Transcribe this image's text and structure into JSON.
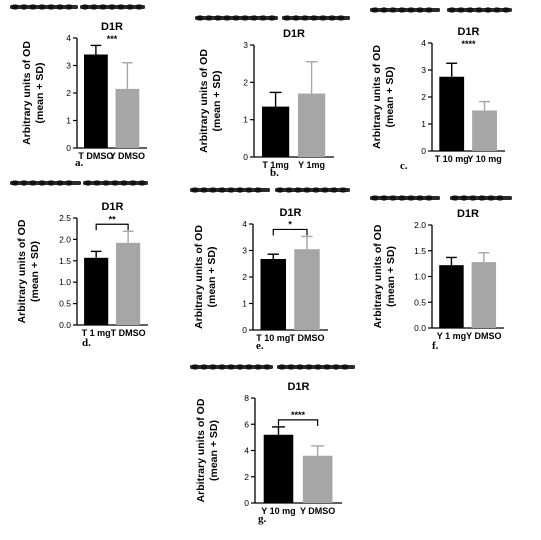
{
  "chart_data": [
    {
      "panel": "a.",
      "type": "bar",
      "title": "D1R",
      "ylabel": "Arbitrary units of OD\n(mean + SD)",
      "categories": [
        "T DMSO",
        "Y DMSO"
      ],
      "values": [
        3.4,
        2.15
      ],
      "errors": [
        0.33,
        0.95
      ],
      "colors": [
        "#000000",
        "#a6a6a6"
      ],
      "ylim": [
        0,
        4
      ],
      "yticks": [
        "0",
        "1",
        "2",
        "3",
        "4"
      ],
      "significance": "***",
      "bracket": false
    },
    {
      "panel": "b.",
      "type": "bar",
      "title": "D1R",
      "ylabel": "Arbitrary units of OD\n(mean + SD)",
      "categories": [
        "T 1mg",
        "Y 1mg"
      ],
      "values": [
        1.35,
        1.7
      ],
      "errors": [
        0.38,
        0.85
      ],
      "colors": [
        "#000000",
        "#a6a6a6"
      ],
      "ylim": [
        0,
        3
      ],
      "yticks": [
        "0",
        "1",
        "2",
        "3"
      ],
      "significance": "",
      "bracket": false
    },
    {
      "panel": "c.",
      "type": "bar",
      "title": "D1R",
      "ylabel": "Arbitrary units of OD\n(mean + SD)",
      "categories": [
        "T 10 mg",
        "Y 10 mg"
      ],
      "values": [
        2.75,
        1.5
      ],
      "errors": [
        0.5,
        0.33
      ],
      "colors": [
        "#000000",
        "#a6a6a6"
      ],
      "ylim": [
        0,
        4
      ],
      "yticks": [
        "0",
        "1",
        "2",
        "3",
        "4"
      ],
      "significance": "****",
      "bracket": false
    },
    {
      "panel": "d.",
      "type": "bar",
      "title": "D1R",
      "ylabel": "Arbitrary units of OD\n(mean + SD)",
      "categories": [
        "T 1 mg",
        "T DMSO"
      ],
      "values": [
        1.57,
        1.92
      ],
      "errors": [
        0.15,
        0.27
      ],
      "colors": [
        "#000000",
        "#a6a6a6"
      ],
      "ylim": [
        0,
        2.5
      ],
      "yticks": [
        "0.0",
        "0.5",
        "1.0",
        "1.5",
        "2.0",
        "2.5"
      ],
      "significance": "**",
      "bracket": true
    },
    {
      "panel": "e.",
      "type": "bar",
      "title": "D1R",
      "ylabel": "Arbitrary units of OD\n(mean + SD)",
      "categories": [
        "T 10 mg",
        "T DMSO"
      ],
      "values": [
        2.68,
        3.05
      ],
      "errors": [
        0.18,
        0.48
      ],
      "colors": [
        "#000000",
        "#a6a6a6"
      ],
      "ylim": [
        0,
        4
      ],
      "yticks": [
        "0",
        "1",
        "2",
        "3",
        "4"
      ],
      "significance": "*",
      "bracket": true
    },
    {
      "panel": "f.",
      "type": "bar",
      "title": "D1R",
      "ylabel": "Arbitrary units of OD\n(mean + SD)",
      "categories": [
        "Y 1 mg",
        "Y DMSO"
      ],
      "values": [
        1.22,
        1.28
      ],
      "errors": [
        0.15,
        0.18
      ],
      "colors": [
        "#000000",
        "#a6a6a6"
      ],
      "ylim": [
        0,
        2
      ],
      "yticks": [
        "0.0",
        "0.5",
        "1.0",
        "1.5",
        "2.0"
      ],
      "significance": "",
      "bracket": false
    },
    {
      "panel": "g.",
      "type": "bar",
      "title": "D1R",
      "ylabel": "Arbitrary units of OD\n(mean + SD)",
      "categories": [
        "Y 10 mg",
        "Y DMSO"
      ],
      "values": [
        5.2,
        3.6
      ],
      "errors": [
        0.6,
        0.75
      ],
      "colors": [
        "#000000",
        "#a6a6a6"
      ],
      "ylim": [
        0,
        8
      ],
      "yticks": [
        "0",
        "2",
        "4",
        "6",
        "8"
      ],
      "significance": "****",
      "bracket": true
    }
  ]
}
